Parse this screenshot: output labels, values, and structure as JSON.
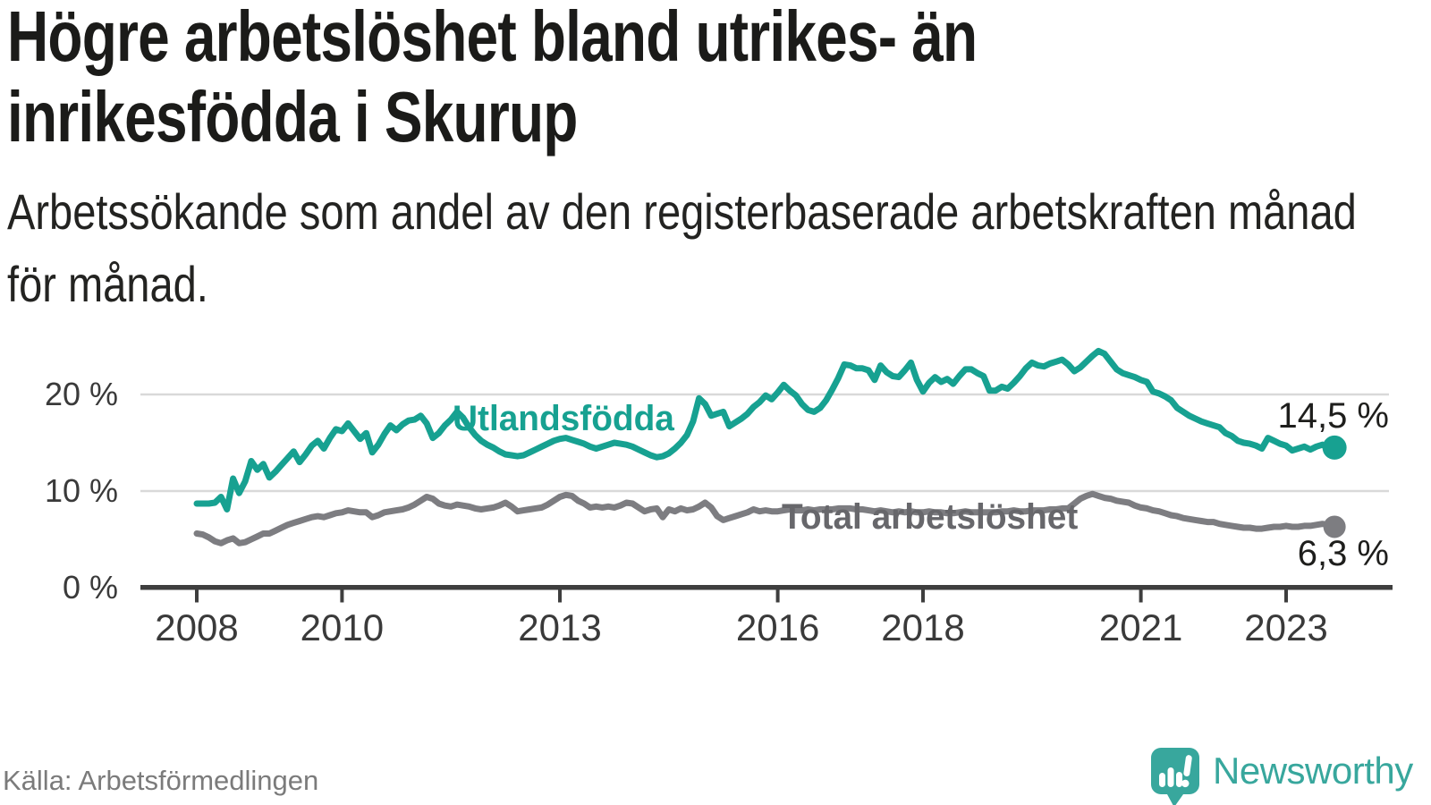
{
  "title": {
    "line1": "Högre arbetslöshet bland utrikes- än",
    "line2": "inrikesfödda i Skurup"
  },
  "subtitle": {
    "line1": "Arbetssökande som andel av den registerbaserade arbetskraften månad",
    "line2": "för månad."
  },
  "source": "Källa: Arbetsförmedlingen",
  "brand": {
    "name": "Newsworthy",
    "logo_icon": "speech-bubble-bar-chart-icon",
    "color": "#38a79d"
  },
  "colors": {
    "background": "#ffffff",
    "title_text": "#1b1b19",
    "axis_text": "#3a3a3a",
    "axis_line": "#3e3e3e",
    "gridline": "#d9d9d9",
    "value_label_text": "#1e1e1c",
    "source_text": "#7b7b7b"
  },
  "chart_data": {
    "type": "line",
    "title": "Högre arbetslöshet bland utrikes- än inrikesfödda i Skurup",
    "subtitle": "Arbetssökande som andel av den registerbaserade arbetskraften månad för månad.",
    "grid": "horizontal",
    "legend_position": "inline-labels",
    "x_axis": {
      "ticks": [
        2008,
        2010,
        2013,
        2016,
        2018,
        2021,
        2023
      ],
      "range": [
        2008,
        2023.75
      ],
      "frequency": "monthly"
    },
    "y_axis": {
      "tick_labels": [
        "0 %",
        "10 %",
        "20 %"
      ],
      "tick_values": [
        0,
        10,
        20
      ],
      "range": [
        0,
        25.5
      ],
      "unit": "%"
    },
    "series": [
      {
        "name": "Utlandsfödda",
        "color": "#17a191",
        "end_label": "14,5 %",
        "last_value": 14.5,
        "start_year": 2008,
        "frequency": "monthly",
        "values": [
          8.7,
          8.7,
          8.7,
          8.8,
          9.4,
          8.1,
          11.3,
          9.8,
          11.0,
          13.1,
          12.2,
          12.8,
          11.4,
          12.0,
          12.7,
          13.4,
          14.1,
          13.0,
          13.8,
          14.7,
          15.2,
          14.4,
          15.5,
          16.4,
          16.2,
          17.0,
          16.2,
          15.4,
          16.0,
          14.0,
          14.8,
          15.9,
          16.8,
          16.3,
          16.9,
          17.3,
          17.4,
          17.8,
          17.0,
          15.5,
          16.0,
          16.8,
          17.4,
          18.2,
          17.6,
          16.6,
          15.8,
          15.2,
          14.8,
          14.5,
          14.1,
          13.8,
          13.7,
          13.6,
          13.7,
          14.0,
          14.3,
          14.6,
          14.9,
          15.2,
          15.4,
          15.5,
          15.3,
          15.1,
          14.9,
          14.6,
          14.4,
          14.6,
          14.8,
          15.0,
          14.9,
          14.8,
          14.6,
          14.3,
          14.0,
          13.7,
          13.5,
          13.6,
          13.9,
          14.4,
          15.0,
          15.8,
          17.2,
          19.6,
          19.0,
          17.8,
          18.0,
          18.2,
          16.7,
          17.1,
          17.5,
          18.0,
          18.7,
          19.2,
          19.9,
          19.5,
          20.2,
          21.0,
          20.4,
          19.9,
          19.0,
          18.4,
          18.2,
          18.6,
          19.4,
          20.5,
          21.7,
          23.1,
          23.0,
          22.7,
          22.7,
          22.5,
          21.5,
          23.0,
          22.3,
          21.9,
          21.8,
          22.5,
          23.3,
          21.5,
          20.3,
          21.2,
          21.8,
          21.3,
          21.6,
          21.1,
          21.9,
          22.6,
          22.6,
          22.2,
          21.9,
          20.4,
          20.4,
          20.8,
          20.6,
          21.2,
          21.9,
          22.7,
          23.3,
          23.0,
          22.9,
          23.2,
          23.4,
          23.6,
          23.1,
          22.4,
          22.8,
          23.4,
          24.0,
          24.5,
          24.2,
          23.4,
          22.6,
          22.2,
          22.0,
          21.8,
          21.5,
          21.3,
          20.3,
          20.1,
          19.8,
          19.4,
          18.6,
          18.2,
          17.8,
          17.5,
          17.2,
          17.0,
          16.8,
          16.6,
          16.0,
          15.7,
          15.2,
          15.0,
          14.9,
          14.7,
          14.4,
          15.5,
          15.2,
          14.9,
          14.7,
          14.2,
          14.4,
          14.6,
          14.3,
          14.6,
          14.8,
          14.4,
          14.5
        ]
      },
      {
        "name": "Total arbetslöshet",
        "color": "#7d7d81",
        "end_label": "6,3 %",
        "last_value": 6.3,
        "start_year": 2008,
        "frequency": "monthly",
        "values": [
          5.6,
          5.5,
          5.2,
          4.8,
          4.6,
          4.9,
          5.1,
          4.6,
          4.7,
          5.0,
          5.3,
          5.6,
          5.6,
          5.9,
          6.2,
          6.5,
          6.7,
          6.9,
          7.1,
          7.3,
          7.4,
          7.3,
          7.5,
          7.7,
          7.8,
          8.0,
          7.9,
          7.8,
          7.8,
          7.3,
          7.5,
          7.8,
          7.9,
          8.0,
          8.1,
          8.3,
          8.6,
          9.0,
          9.4,
          9.2,
          8.7,
          8.5,
          8.4,
          8.6,
          8.5,
          8.4,
          8.2,
          8.1,
          8.2,
          8.3,
          8.5,
          8.8,
          8.4,
          7.9,
          8.0,
          8.1,
          8.2,
          8.3,
          8.6,
          9.0,
          9.4,
          9.6,
          9.5,
          9.0,
          8.7,
          8.3,
          8.4,
          8.3,
          8.4,
          8.3,
          8.5,
          8.8,
          8.7,
          8.3,
          7.9,
          8.1,
          8.2,
          7.3,
          8.1,
          7.9,
          8.2,
          8.0,
          8.1,
          8.4,
          8.8,
          8.3,
          7.4,
          7.0,
          7.2,
          7.4,
          7.6,
          7.8,
          8.1,
          7.9,
          8.0,
          7.9,
          7.9,
          8.0,
          8.1,
          8.0,
          8.0,
          8.1,
          8.0,
          8.1,
          8.1,
          8.1,
          8.2,
          8.2,
          8.2,
          8.1,
          8.1,
          8.0,
          7.9,
          8.0,
          7.9,
          7.8,
          7.9,
          7.8,
          7.9,
          7.8,
          7.8,
          7.9,
          7.8,
          7.8,
          7.7,
          7.7,
          7.8,
          7.9,
          7.8,
          7.8,
          7.8,
          7.8,
          7.8,
          7.9,
          7.9,
          8.0,
          7.9,
          7.9,
          8.0,
          8.0,
          8.0,
          8.1,
          8.1,
          8.2,
          8.2,
          8.7,
          9.2,
          9.5,
          9.7,
          9.5,
          9.3,
          9.2,
          9.0,
          8.9,
          8.8,
          8.5,
          8.3,
          8.2,
          8.0,
          7.9,
          7.7,
          7.5,
          7.4,
          7.2,
          7.1,
          7.0,
          6.9,
          6.8,
          6.8,
          6.6,
          6.5,
          6.4,
          6.3,
          6.2,
          6.2,
          6.1,
          6.1,
          6.2,
          6.3,
          6.3,
          6.4,
          6.3,
          6.3,
          6.4,
          6.4,
          6.5,
          6.6,
          6.5,
          6.3
        ]
      }
    ]
  }
}
